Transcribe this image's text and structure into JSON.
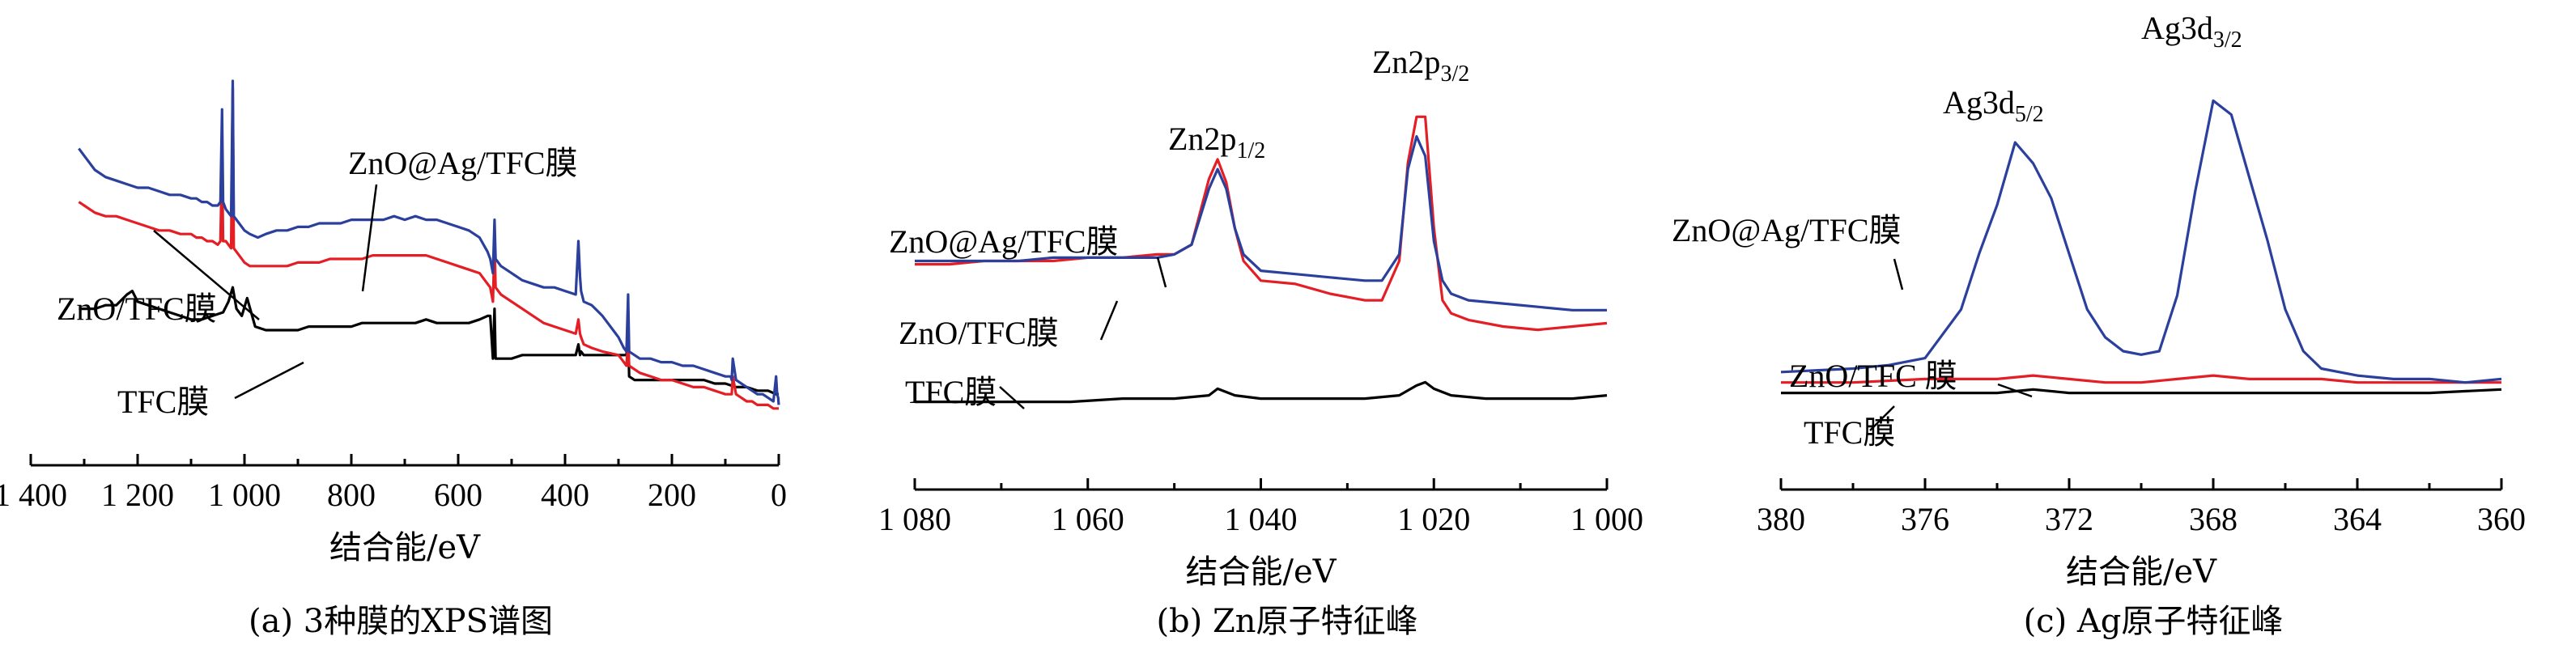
{
  "colors": {
    "black": "#000000",
    "red": "#e41e25",
    "blue": "#2b3f9c"
  },
  "chart_data": [
    {
      "type": "line",
      "caption": "(a) 3种膜的XPS谱图",
      "xlabel": "结合能/eV",
      "ylabel": "",
      "xlim": [
        1400,
        0
      ],
      "ylim": [
        0,
        100
      ],
      "x_ticks": [
        1400,
        1200,
        1000,
        800,
        600,
        400,
        200,
        0
      ],
      "x_tick_labels": [
        "1 400",
        "1 200",
        "1 000",
        "800",
        "600",
        "400",
        "200",
        "0"
      ],
      "grid": false,
      "annotations": [
        {
          "text": "ZnO@Ag/TFC膜",
          "series": "ZnO@Ag/TFC膜"
        },
        {
          "text": "ZnO/TFC膜",
          "series": "ZnO/TFC膜"
        },
        {
          "text": "TFC膜",
          "series": "TFC膜"
        }
      ],
      "series": [
        {
          "name": "ZnO@Ag/TFC膜",
          "color": "blue",
          "x": [
            1310,
            1300,
            1280,
            1260,
            1240,
            1220,
            1200,
            1180,
            1160,
            1140,
            1120,
            1100,
            1090,
            1080,
            1070,
            1060,
            1050,
            1045,
            1042,
            1040,
            1035,
            1025,
            1022,
            1020,
            1010,
            1000,
            990,
            975,
            960,
            940,
            920,
            900,
            880,
            860,
            840,
            820,
            800,
            780,
            760,
            740,
            720,
            700,
            680,
            660,
            640,
            620,
            600,
            580,
            560,
            545,
            540,
            535,
            532,
            530,
            520,
            500,
            480,
            460,
            440,
            420,
            400,
            380,
            375,
            372,
            370,
            365,
            350,
            330,
            300,
            290,
            285,
            282,
            280,
            270,
            260,
            240,
            220,
            200,
            180,
            160,
            140,
            120,
            100,
            90,
            88,
            86,
            80,
            70,
            60,
            50,
            40,
            30,
            20,
            10,
            5,
            3,
            1,
            0
          ],
          "y": [
            81,
            79,
            75,
            73,
            72,
            71,
            70,
            70,
            69,
            68,
            68,
            67,
            67,
            66,
            66,
            65,
            65,
            66,
            92,
            66,
            64,
            62,
            100,
            62,
            60,
            58,
            57,
            56,
            57,
            58,
            58,
            59,
            59,
            60,
            60,
            60,
            61,
            61,
            61,
            61,
            62,
            61,
            62,
            61,
            61,
            60,
            59,
            58,
            56,
            52,
            50,
            46,
            61,
            50,
            48,
            46,
            44,
            43,
            42,
            42,
            41,
            40,
            55,
            45,
            41,
            38,
            37,
            34,
            28,
            25,
            24,
            40,
            24,
            23,
            22,
            22,
            21,
            21,
            20,
            20,
            19,
            18,
            17,
            17,
            16,
            22,
            16,
            15,
            14,
            13,
            12,
            12,
            11,
            10,
            17,
            12,
            11,
            9
          ]
        },
        {
          "name": "ZnO/TFC膜",
          "color": "red",
          "x": [
            1310,
            1300,
            1280,
            1260,
            1240,
            1220,
            1200,
            1180,
            1160,
            1140,
            1120,
            1100,
            1090,
            1080,
            1070,
            1060,
            1050,
            1045,
            1042,
            1040,
            1035,
            1025,
            1022,
            1020,
            1010,
            1000,
            990,
            975,
            960,
            940,
            920,
            900,
            880,
            860,
            840,
            820,
            800,
            780,
            760,
            740,
            720,
            700,
            680,
            660,
            640,
            620,
            600,
            580,
            560,
            545,
            540,
            535,
            532,
            530,
            520,
            500,
            480,
            460,
            440,
            420,
            400,
            380,
            375,
            372,
            370,
            365,
            350,
            330,
            300,
            290,
            285,
            282,
            280,
            270,
            260,
            240,
            220,
            200,
            180,
            160,
            140,
            120,
            100,
            90,
            88,
            86,
            80,
            70,
            60,
            50,
            40,
            30,
            20,
            10,
            5,
            3,
            1,
            0
          ],
          "y": [
            66,
            65,
            63,
            62,
            62,
            61,
            60,
            59,
            58,
            58,
            57,
            57,
            56,
            56,
            55,
            55,
            54,
            55,
            78,
            55,
            55,
            53,
            98,
            53,
            51,
            49,
            48,
            48,
            48,
            48,
            48,
            49,
            49,
            49,
            50,
            50,
            50,
            50,
            51,
            51,
            51,
            51,
            51,
            51,
            50,
            49,
            48,
            47,
            46,
            43,
            42,
            38,
            54,
            42,
            40,
            38,
            36,
            34,
            32,
            31,
            30,
            29,
            33,
            29,
            28,
            26,
            25,
            24,
            23,
            21,
            20,
            27,
            20,
            19,
            18,
            17,
            16,
            16,
            15,
            14,
            14,
            13,
            12,
            12,
            12,
            17,
            12,
            11,
            10,
            10,
            9,
            9,
            9,
            8,
            8,
            8,
            8,
            8
          ]
        },
        {
          "name": "TFC膜",
          "color": "black",
          "x": [
            1310,
            1300,
            1280,
            1260,
            1240,
            1220,
            1210,
            1200,
            1180,
            1160,
            1140,
            1120,
            1100,
            1080,
            1060,
            1040,
            1030,
            1022,
            1015,
            1005,
            995,
            980,
            960,
            940,
            920,
            900,
            880,
            860,
            840,
            820,
            800,
            780,
            760,
            740,
            720,
            700,
            680,
            660,
            640,
            620,
            600,
            580,
            560,
            545,
            540,
            535,
            532,
            530,
            520,
            500,
            480,
            460,
            440,
            420,
            400,
            380,
            375,
            372,
            370,
            365,
            350,
            330,
            300,
            290,
            285,
            282,
            280,
            270,
            260,
            240,
            220,
            200,
            180,
            160,
            140,
            120,
            100,
            80,
            60,
            40,
            20,
            5,
            0
          ],
          "y": [
            36,
            36,
            36,
            37,
            37,
            40,
            41,
            38,
            37,
            36,
            35,
            34,
            33,
            33,
            34,
            35,
            38,
            42,
            36,
            34,
            39,
            31,
            30,
            30,
            30,
            30,
            31,
            31,
            31,
            31,
            31,
            32,
            32,
            32,
            32,
            32,
            32,
            33,
            32,
            32,
            32,
            32,
            33,
            34,
            34,
            22,
            36,
            22,
            22,
            22,
            23,
            23,
            23,
            23,
            23,
            23,
            26,
            23,
            24,
            23,
            23,
            23,
            23,
            23,
            23,
            30,
            17,
            16,
            16,
            16,
            16,
            16,
            16,
            16,
            16,
            15,
            15,
            14,
            14,
            13,
            13,
            12,
            12
          ]
        }
      ]
    },
    {
      "type": "line",
      "caption": "(b) Zn原子特征峰",
      "xlabel": "结合能/eV",
      "ylabel": "",
      "xlim": [
        1080,
        1000
      ],
      "ylim": [
        0,
        100
      ],
      "x_ticks": [
        1080,
        1060,
        1040,
        1020,
        1000
      ],
      "x_tick_labels": [
        "1 080",
        "1 060",
        "1 040",
        "1 020",
        "1 000"
      ],
      "grid": false,
      "annotations": [
        {
          "text": "ZnO@Ag/TFC膜",
          "series": "ZnO@Ag/TFC膜"
        },
        {
          "text": "ZnO/TFC膜",
          "series": "ZnO/TFC膜"
        },
        {
          "text": "TFC膜",
          "series": "TFC膜"
        },
        {
          "text": "Zn2p",
          "sub": "1/2"
        },
        {
          "text": "Zn2p",
          "sub": "3/2"
        }
      ],
      "series": [
        {
          "name": "ZnO@Ag/TFC膜",
          "color": "blue",
          "x": [
            1080,
            1076,
            1072,
            1068,
            1064,
            1060,
            1056,
            1052,
            1050,
            1048,
            1046,
            1045,
            1044,
            1043,
            1042,
            1040,
            1036,
            1032,
            1028,
            1026,
            1024,
            1023,
            1022,
            1021,
            1020,
            1019,
            1018,
            1016,
            1012,
            1008,
            1004,
            1000
          ],
          "y": [
            50,
            50,
            50,
            50,
            51,
            51,
            51,
            51,
            52,
            55,
            72,
            78,
            72,
            60,
            52,
            47,
            46,
            45,
            44,
            44,
            52,
            78,
            88,
            82,
            56,
            44,
            40,
            38,
            37,
            36,
            35,
            35
          ]
        },
        {
          "name": "ZnO/TFC膜",
          "color": "red",
          "x": [
            1080,
            1076,
            1072,
            1068,
            1064,
            1060,
            1056,
            1052,
            1050,
            1048,
            1046,
            1045,
            1044,
            1043,
            1042,
            1040,
            1036,
            1032,
            1028,
            1026,
            1024,
            1023,
            1022,
            1021,
            1020,
            1019,
            1018,
            1016,
            1012,
            1008,
            1004,
            1000
          ],
          "y": [
            49,
            49,
            50,
            50,
            50,
            51,
            51,
            52,
            52,
            55,
            75,
            81,
            74,
            60,
            50,
            44,
            43,
            40,
            38,
            38,
            50,
            80,
            94,
            94,
            60,
            38,
            34,
            32,
            30,
            29,
            30,
            31
          ]
        },
        {
          "name": "TFC膜",
          "color": "black",
          "x": [
            1080,
            1074,
            1068,
            1062,
            1056,
            1050,
            1046,
            1045,
            1044,
            1043,
            1040,
            1034,
            1028,
            1024,
            1022,
            1021,
            1020,
            1018,
            1014,
            1008,
            1004,
            1000
          ],
          "y": [
            7,
            7,
            7,
            7,
            8,
            8,
            9,
            11,
            10,
            9,
            8,
            8,
            8,
            9,
            12,
            13,
            11,
            9,
            8,
            8,
            8,
            9
          ]
        }
      ]
    },
    {
      "type": "line",
      "caption": "(c) Ag原子特征峰",
      "xlabel": "结合能/eV",
      "ylabel": "",
      "xlim": [
        380,
        360
      ],
      "ylim": [
        0,
        100
      ],
      "x_ticks": [
        380,
        376,
        372,
        368,
        364,
        360
      ],
      "x_tick_labels": [
        "380",
        "376",
        "372",
        "368",
        "364",
        "360"
      ],
      "grid": false,
      "annotations": [
        {
          "text": "ZnO@Ag/TFC膜",
          "series": "ZnO@Ag/TFC膜"
        },
        {
          "text": "ZnO/TFC 膜",
          "series": "ZnO/TFC膜"
        },
        {
          "text": "TFC膜",
          "series": "TFC膜"
        },
        {
          "text": "Ag3d",
          "sub": "5/2"
        },
        {
          "text": "Ag3d",
          "sub": "3/2"
        }
      ],
      "series": [
        {
          "name": "ZnO@Ag/TFC膜",
          "color": "blue",
          "x": [
            380,
            378,
            377,
            376,
            375,
            374.5,
            374,
            373.5,
            373,
            372.5,
            372,
            371.5,
            371,
            370.5,
            370,
            369.5,
            369,
            368.5,
            368,
            367.5,
            367,
            366.5,
            366,
            365.5,
            365,
            364.5,
            364,
            363,
            362,
            361,
            360
          ],
          "y": [
            14,
            15,
            16,
            18,
            32,
            48,
            62,
            80,
            74,
            64,
            48,
            32,
            24,
            20,
            19,
            20,
            36,
            66,
            92,
            88,
            70,
            52,
            32,
            20,
            15,
            14,
            13,
            12,
            12,
            11,
            12
          ]
        },
        {
          "name": "ZnO/TFC膜",
          "color": "red",
          "x": [
            380,
            378,
            376,
            374,
            373,
            372,
            371,
            370,
            369,
            368,
            367,
            366,
            365,
            364,
            362,
            360
          ],
          "y": [
            11,
            11,
            12,
            12,
            13,
            12,
            11,
            11,
            12,
            13,
            12,
            12,
            12,
            11,
            11,
            11
          ]
        },
        {
          "name": "TFC膜",
          "color": "black",
          "x": [
            380,
            378,
            376,
            374,
            373,
            372,
            370,
            368,
            366,
            364,
            362,
            360
          ],
          "y": [
            8,
            8,
            8,
            8,
            9,
            8,
            8,
            8,
            8,
            8,
            8,
            9
          ]
        }
      ]
    }
  ]
}
